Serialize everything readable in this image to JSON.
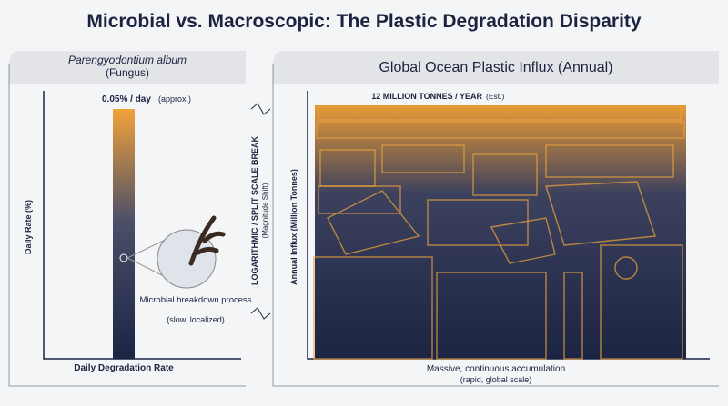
{
  "title": "Microbial vs. Macroscopic: The Plastic Degradation Disparity",
  "left_panel": {
    "header_name": "Parengyodontium album",
    "header_sub": "(Fungus)",
    "value_label": "0.05% / day",
    "value_note": "(approx.)",
    "y_axis_label": "Daily Rate (%)",
    "x_axis_label": "Daily Degradation Rate",
    "annotation": "Microbial breakdown process",
    "annotation_note": "(slow, localized)"
  },
  "scale_break": {
    "label": "LOGARITHMIC / SPLIT SCALE BREAK",
    "note": "(Magnitude Shift)"
  },
  "right_panel": {
    "header": "Global Ocean Plastic Influx (Annual)",
    "value_label": "12 MILLION TONNES / YEAR",
    "value_note": "(Est.)",
    "y_axis_label": "Annual Influx (Million Tonnes)",
    "x_axis_label": "Massive, continuous accumulation",
    "x_axis_note": "(rapid, global scale)"
  }
}
